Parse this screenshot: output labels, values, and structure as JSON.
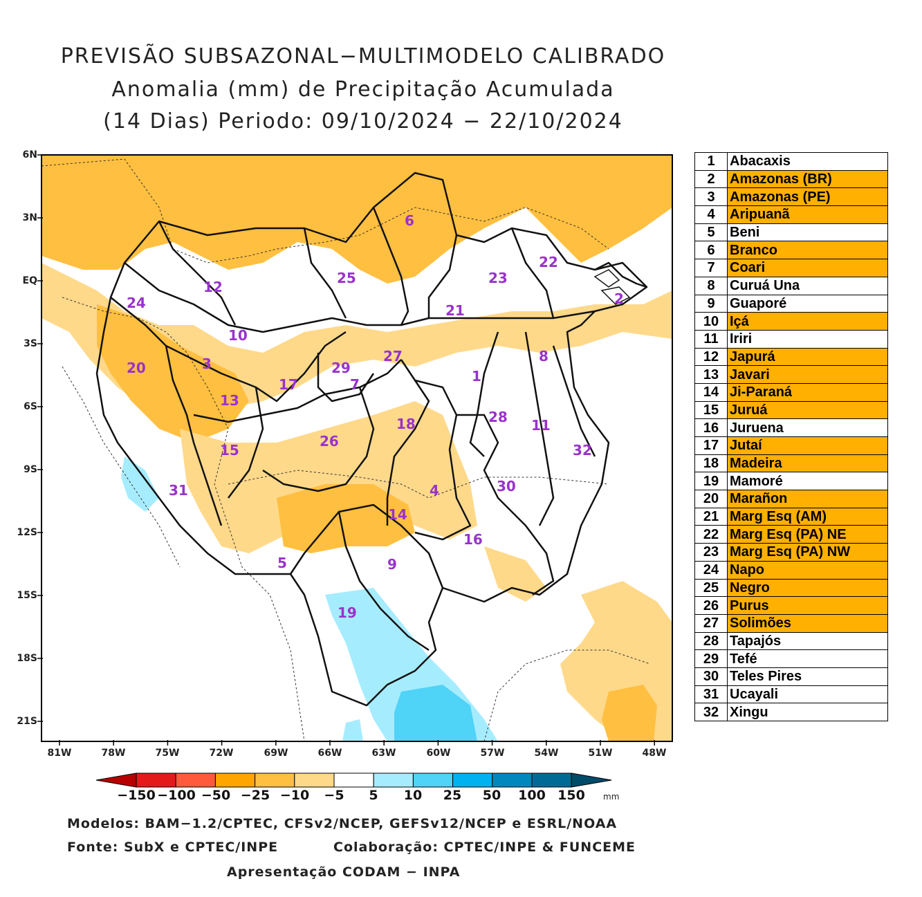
{
  "title": {
    "line1": "PREVISÃO SUBSAZONAL−MULTIMODELO CALIBRADO",
    "line2": "Anomalia (mm) de Precipitação Acumulada",
    "line3": "(14 Dias) Periodo: 09/10/2024 − 22/10/2024"
  },
  "axes": {
    "lat_ticks": [
      "6N",
      "3N",
      "EQ",
      "3S",
      "6S",
      "9S",
      "12S",
      "15S",
      "18S",
      "21S"
    ],
    "lon_ticks": [
      "81W",
      "78W",
      "75W",
      "72W",
      "69W",
      "66W",
      "63W",
      "60W",
      "57W",
      "54W",
      "51W",
      "48W"
    ]
  },
  "colorbar": {
    "labels": [
      "−150",
      "−100",
      "−50",
      "−25",
      "−10",
      "−5",
      "5",
      "10",
      "25",
      "50",
      "100",
      "150"
    ],
    "unit": "mm",
    "colors": [
      "#b80000",
      "#e41a1a",
      "#ff5a3c",
      "#ffa500",
      "#ffbf40",
      "#ffd98a",
      "#ffffff",
      "#a6ecff",
      "#4fd3f7",
      "#00b2f0",
      "#0087bd",
      "#006a96",
      "#004a6a"
    ]
  },
  "footer": {
    "models": "Modelos: BAM−1.2/CPTEC, CFSv2/NCEP, GEFSv12/NCEP e ESRL/NOAA",
    "source": "Fonte: SubX e CPTEC/INPE",
    "collab": "Colaboração: CPTEC/INPE & FUNCEME",
    "presentation": "Apresentação CODAM − INPA"
  },
  "basins": [
    {
      "num": "1",
      "name": "Abacaxis",
      "highlight": false
    },
    {
      "num": "2",
      "name": "Amazonas (BR)",
      "highlight": true
    },
    {
      "num": "3",
      "name": "Amazonas (PE)",
      "highlight": true
    },
    {
      "num": "4",
      "name": "Aripuanã",
      "highlight": true
    },
    {
      "num": "5",
      "name": "Beni",
      "highlight": false
    },
    {
      "num": "6",
      "name": "Branco",
      "highlight": true
    },
    {
      "num": "7",
      "name": "Coari",
      "highlight": true
    },
    {
      "num": "8",
      "name": "Curuá Una",
      "highlight": false
    },
    {
      "num": "9",
      "name": "Guaporé",
      "highlight": false
    },
    {
      "num": "10",
      "name": "Içá",
      "highlight": true
    },
    {
      "num": "11",
      "name": "Iriri",
      "highlight": false
    },
    {
      "num": "12",
      "name": "Japurá",
      "highlight": true
    },
    {
      "num": "13",
      "name": "Javari",
      "highlight": true
    },
    {
      "num": "14",
      "name": "Ji-Paraná",
      "highlight": true
    },
    {
      "num": "15",
      "name": "Juruá",
      "highlight": true
    },
    {
      "num": "16",
      "name": "Juruena",
      "highlight": false
    },
    {
      "num": "17",
      "name": "Jutaí",
      "highlight": true
    },
    {
      "num": "18",
      "name": "Madeira",
      "highlight": true
    },
    {
      "num": "19",
      "name": "Mamoré",
      "highlight": false
    },
    {
      "num": "20",
      "name": "Marañon",
      "highlight": true
    },
    {
      "num": "21",
      "name": "Marg Esq (AM)",
      "highlight": true
    },
    {
      "num": "22",
      "name": "Marg Esq (PA) NE",
      "highlight": true
    },
    {
      "num": "23",
      "name": "Marg Esq (PA) NW",
      "highlight": true
    },
    {
      "num": "24",
      "name": "Napo",
      "highlight": true
    },
    {
      "num": "25",
      "name": "Negro",
      "highlight": true
    },
    {
      "num": "26",
      "name": "Purus",
      "highlight": true
    },
    {
      "num": "27",
      "name": "Solimões",
      "highlight": true
    },
    {
      "num": "28",
      "name": "Tapajós",
      "highlight": false
    },
    {
      "num": "29",
      "name": "Tefé",
      "highlight": false
    },
    {
      "num": "30",
      "name": "Teles Pires",
      "highlight": false
    },
    {
      "num": "31",
      "name": "Ucayali",
      "highlight": false
    },
    {
      "num": "32",
      "name": "Xingu",
      "highlight": false
    }
  ]
}
